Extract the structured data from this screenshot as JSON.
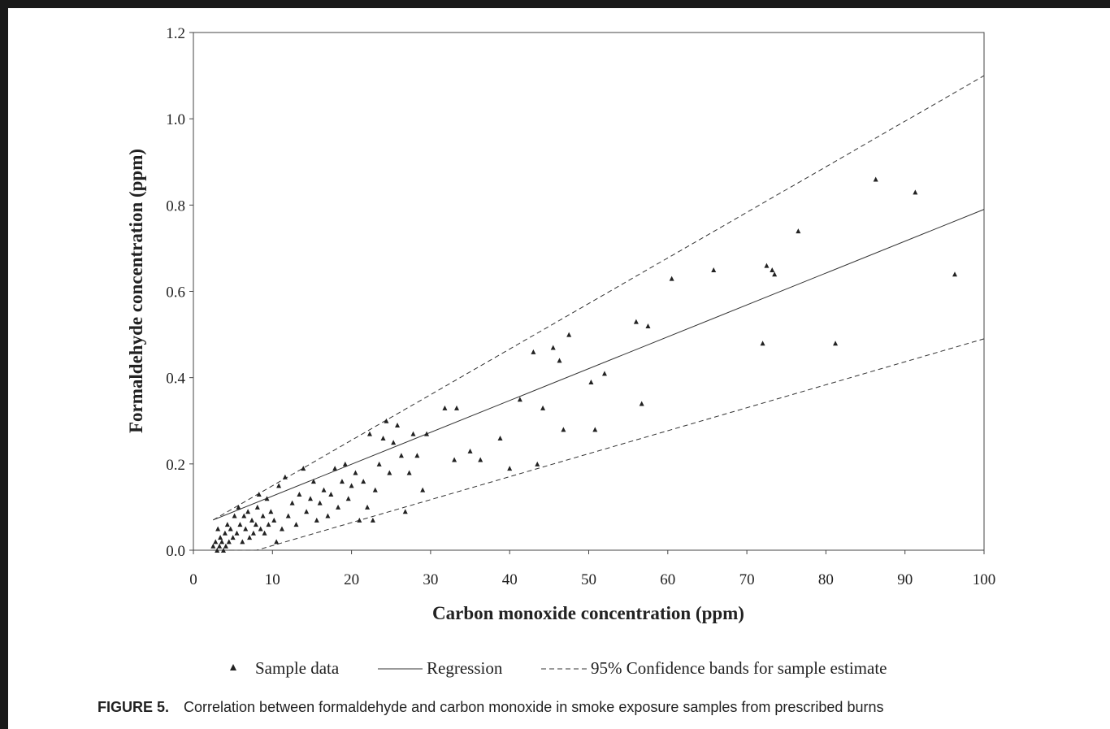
{
  "chart_data": {
    "type": "scatter",
    "xlabel": "Carbon monoxide concentration (ppm)",
    "ylabel": "Formaldehyde concentration (ppm)",
    "xlim": [
      0,
      100
    ],
    "ylim": [
      0,
      1.2
    ],
    "x_ticks": [
      "0",
      "10",
      "20",
      "30",
      "40",
      "50",
      "60",
      "70",
      "80",
      "90",
      "100"
    ],
    "y_ticks": [
      "0.0",
      "0.2",
      "0.4",
      "0.6",
      "0.8",
      "1.0",
      "1.2"
    ],
    "grid": false,
    "legend_position": "bottom",
    "legend": {
      "sample": "Sample data",
      "regression": "Regression",
      "confidence": "95% Confidence bands for sample estimate"
    },
    "series": [
      {
        "name": "Sample data",
        "kind": "scatter",
        "points": [
          [
            2.5,
            0.01
          ],
          [
            2.8,
            0.02
          ],
          [
            3.0,
            0.0
          ],
          [
            3.1,
            0.05
          ],
          [
            3.3,
            0.01
          ],
          [
            3.4,
            0.03
          ],
          [
            3.6,
            0.02
          ],
          [
            3.8,
            0.0
          ],
          [
            4.0,
            0.04
          ],
          [
            4.1,
            0.01
          ],
          [
            4.3,
            0.06
          ],
          [
            4.5,
            0.02
          ],
          [
            4.7,
            0.05
          ],
          [
            5.0,
            0.03
          ],
          [
            5.2,
            0.08
          ],
          [
            5.5,
            0.04
          ],
          [
            5.7,
            0.1
          ],
          [
            5.9,
            0.06
          ],
          [
            6.2,
            0.02
          ],
          [
            6.4,
            0.08
          ],
          [
            6.6,
            0.05
          ],
          [
            6.9,
            0.09
          ],
          [
            7.1,
            0.03
          ],
          [
            7.4,
            0.07
          ],
          [
            7.6,
            0.04
          ],
          [
            7.9,
            0.06
          ],
          [
            8.1,
            0.1
          ],
          [
            8.3,
            0.13
          ],
          [
            8.5,
            0.05
          ],
          [
            8.8,
            0.08
          ],
          [
            9.0,
            0.04
          ],
          [
            9.3,
            0.12
          ],
          [
            9.5,
            0.06
          ],
          [
            9.8,
            0.09
          ],
          [
            10.2,
            0.07
          ],
          [
            10.5,
            0.02
          ],
          [
            10.8,
            0.15
          ],
          [
            11.2,
            0.05
          ],
          [
            11.6,
            0.17
          ],
          [
            12.0,
            0.08
          ],
          [
            12.5,
            0.11
          ],
          [
            13.0,
            0.06
          ],
          [
            13.4,
            0.13
          ],
          [
            13.9,
            0.19
          ],
          [
            14.3,
            0.09
          ],
          [
            14.8,
            0.12
          ],
          [
            15.2,
            0.16
          ],
          [
            15.6,
            0.07
          ],
          [
            16.0,
            0.11
          ],
          [
            16.5,
            0.14
          ],
          [
            17.0,
            0.08
          ],
          [
            17.4,
            0.13
          ],
          [
            17.9,
            0.19
          ],
          [
            18.3,
            0.1
          ],
          [
            18.8,
            0.16
          ],
          [
            19.2,
            0.2
          ],
          [
            19.6,
            0.12
          ],
          [
            20.0,
            0.15
          ],
          [
            20.5,
            0.18
          ],
          [
            21.0,
            0.07
          ],
          [
            21.5,
            0.16
          ],
          [
            22.0,
            0.1
          ],
          [
            22.3,
            0.27
          ],
          [
            22.7,
            0.07
          ],
          [
            23.0,
            0.14
          ],
          [
            23.5,
            0.2
          ],
          [
            24.0,
            0.26
          ],
          [
            24.4,
            0.3
          ],
          [
            24.8,
            0.18
          ],
          [
            25.3,
            0.25
          ],
          [
            25.8,
            0.29
          ],
          [
            26.3,
            0.22
          ],
          [
            26.8,
            0.09
          ],
          [
            27.3,
            0.18
          ],
          [
            27.8,
            0.27
          ],
          [
            28.3,
            0.22
          ],
          [
            29.0,
            0.14
          ],
          [
            29.5,
            0.27
          ],
          [
            31.8,
            0.33
          ],
          [
            33.0,
            0.21
          ],
          [
            33.3,
            0.33
          ],
          [
            35.0,
            0.23
          ],
          [
            36.3,
            0.21
          ],
          [
            38.8,
            0.26
          ],
          [
            40.0,
            0.19
          ],
          [
            41.3,
            0.35
          ],
          [
            43.0,
            0.46
          ],
          [
            43.5,
            0.2
          ],
          [
            44.2,
            0.33
          ],
          [
            45.5,
            0.47
          ],
          [
            46.3,
            0.44
          ],
          [
            46.8,
            0.28
          ],
          [
            47.5,
            0.5
          ],
          [
            50.3,
            0.39
          ],
          [
            50.8,
            0.28
          ],
          [
            52.0,
            0.41
          ],
          [
            56.0,
            0.53
          ],
          [
            56.7,
            0.34
          ],
          [
            57.5,
            0.52
          ],
          [
            60.5,
            0.63
          ],
          [
            65.8,
            0.65
          ],
          [
            72.0,
            0.48
          ],
          [
            72.5,
            0.66
          ],
          [
            73.2,
            0.65
          ],
          [
            73.5,
            0.64
          ],
          [
            76.5,
            0.74
          ],
          [
            81.2,
            0.48
          ],
          [
            86.3,
            0.86
          ],
          [
            91.3,
            0.83
          ],
          [
            96.3,
            0.64
          ]
        ]
      },
      {
        "name": "Regression",
        "kind": "line",
        "points": [
          [
            2.5,
            0.07
          ],
          [
            100,
            0.79
          ]
        ]
      },
      {
        "name": "95% Confidence bands for sample estimate",
        "kind": "line",
        "style": "dashed",
        "points": [
          [
            2.5,
            0.0
          ],
          [
            8.0,
            0.0
          ],
          [
            100,
            0.49
          ]
        ]
      },
      {
        "name": "95% Confidence bands for sample estimate",
        "kind": "line",
        "style": "dashed",
        "points": [
          [
            2.5,
            0.07
          ],
          [
            100,
            1.1
          ]
        ]
      }
    ]
  },
  "caption": {
    "label": "FIGURE 5.",
    "text": "Correlation between formaldehyde and carbon monoxide in smoke exposure samples from prescribed burns"
  }
}
